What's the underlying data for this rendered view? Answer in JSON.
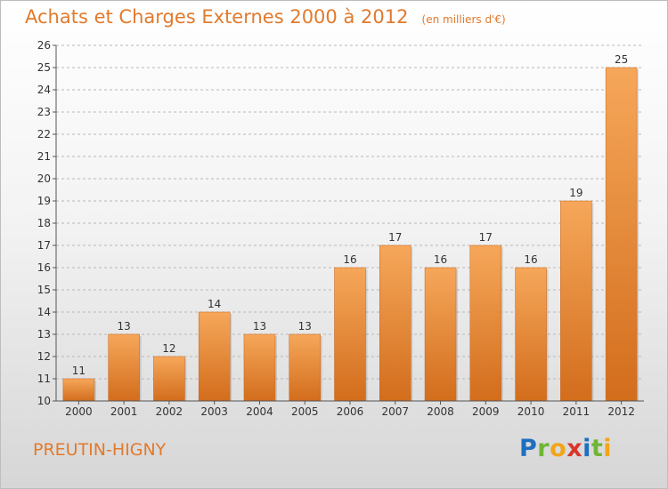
{
  "title": {
    "main": "Achats et Charges Externes 2000 à 2012",
    "unit": "(en milliers d'€)"
  },
  "commune": "PREUTIN-HIGNY",
  "logo": {
    "letters": [
      {
        "ch": "P",
        "color": "#1f6fc1"
      },
      {
        "ch": "r",
        "color": "#6fb536"
      },
      {
        "ch": "o",
        "color": "#f2a51a"
      },
      {
        "ch": "x",
        "color": "#d9362b"
      },
      {
        "ch": "i",
        "color": "#1f6fc1"
      },
      {
        "ch": "t",
        "color": "#6fb536"
      },
      {
        "ch": "i",
        "color": "#f2a51a"
      }
    ]
  },
  "chart_data": {
    "type": "bar",
    "categories": [
      "2000",
      "2001",
      "2002",
      "2003",
      "2004",
      "2005",
      "2006",
      "2007",
      "2008",
      "2009",
      "2010",
      "2011",
      "2012"
    ],
    "values": [
      11,
      13,
      12,
      14,
      13,
      13,
      16,
      17,
      16,
      17,
      16,
      19,
      25
    ],
    "ylim": [
      10,
      26
    ],
    "yticks": [
      10,
      11,
      12,
      13,
      14,
      15,
      16,
      17,
      18,
      19,
      20,
      21,
      22,
      23,
      24,
      25,
      26
    ],
    "grid": "horizontal-dashed",
    "bar_color_top": "#f6a75a",
    "bar_color_bottom": "#d26d1c",
    "title": "Achats et Charges Externes 2000 à 2012",
    "xlabel": "",
    "ylabel": ""
  }
}
